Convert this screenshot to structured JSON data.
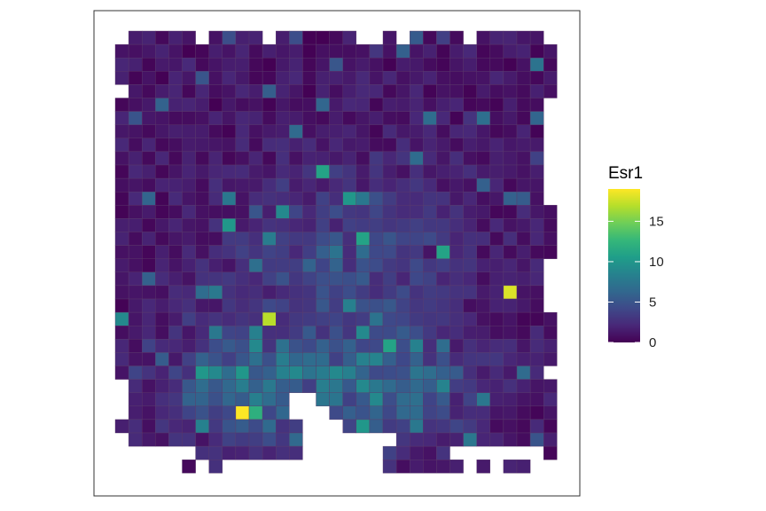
{
  "chart_data": {
    "type": "heatmap",
    "title": "",
    "xlabel": "",
    "ylabel": "",
    "legend": {
      "title": "Esr1",
      "placement": "right",
      "ticks": [
        {
          "value": 0,
          "label": "0"
        },
        {
          "value": 5,
          "label": "5"
        },
        {
          "value": 10,
          "label": "10"
        },
        {
          "value": 15,
          "label": "15"
        }
      ],
      "range": [
        0,
        19
      ]
    },
    "colorscale": "viridis",
    "colors": [
      "#440154",
      "#482878",
      "#3e4989",
      "#31688e",
      "#26828e",
      "#1f9e89",
      "#35b779",
      "#6ece58",
      "#b5de2b",
      "#fde725"
    ],
    "grid": "off",
    "axes": "hidden",
    "panel_border": true,
    "n_columns": 33,
    "n_rows": 33,
    "hotspots": [
      {
        "col": 9,
        "row": 28,
        "value": 19
      },
      {
        "col": 29,
        "row": 19,
        "value": 18
      },
      {
        "col": 11,
        "row": 21,
        "value": 17
      },
      {
        "col": 10,
        "row": 28,
        "value": 12
      },
      {
        "col": 15,
        "row": 10,
        "value": 11
      },
      {
        "col": 8,
        "row": 14,
        "value": 10
      },
      {
        "col": 0,
        "row": 21,
        "value": 9
      },
      {
        "col": 17,
        "row": 12,
        "value": 10
      },
      {
        "col": 18,
        "row": 15,
        "value": 11
      },
      {
        "col": 24,
        "row": 16,
        "value": 11
      },
      {
        "col": 20,
        "row": 23,
        "value": 11
      },
      {
        "col": 6,
        "row": 25,
        "value": 10
      },
      {
        "col": 9,
        "row": 25,
        "value": 10
      },
      {
        "col": 18,
        "row": 29,
        "value": 10
      }
    ],
    "missing_cells": [
      [
        0,
        0
      ],
      [
        6,
        0
      ],
      [
        11,
        0
      ],
      [
        18,
        0
      ],
      [
        19,
        0
      ],
      [
        21,
        0
      ],
      [
        26,
        0
      ],
      [
        32,
        0
      ],
      [
        0,
        4
      ],
      [
        32,
        5
      ],
      [
        32,
        6
      ],
      [
        32,
        7
      ],
      [
        32,
        8
      ],
      [
        32,
        9
      ],
      [
        32,
        10
      ],
      [
        32,
        11
      ],
      [
        32,
        12
      ],
      [
        32,
        17
      ],
      [
        32,
        18
      ],
      [
        32,
        19
      ],
      [
        32,
        20
      ],
      [
        32,
        25
      ],
      [
        0,
        26
      ],
      [
        0,
        27
      ],
      [
        0,
        28
      ],
      [
        13,
        27
      ],
      [
        14,
        27
      ],
      [
        13,
        28
      ],
      [
        14,
        28
      ],
      [
        15,
        28
      ],
      [
        14,
        29
      ],
      [
        15,
        29
      ],
      [
        16,
        29
      ],
      [
        0,
        30
      ],
      [
        0,
        31
      ],
      [
        1,
        31
      ],
      [
        2,
        31
      ],
      [
        3,
        31
      ],
      [
        4,
        31
      ],
      [
        5,
        31
      ],
      [
        14,
        30
      ],
      [
        15,
        30
      ],
      [
        16,
        30
      ],
      [
        17,
        30
      ],
      [
        18,
        30
      ],
      [
        19,
        30
      ],
      [
        20,
        30
      ],
      [
        14,
        31
      ],
      [
        15,
        31
      ],
      [
        16,
        31
      ],
      [
        17,
        31
      ],
      [
        18,
        31
      ],
      [
        19,
        31
      ],
      [
        25,
        31
      ],
      [
        26,
        31
      ],
      [
        27,
        31
      ],
      [
        28,
        31
      ],
      [
        29,
        31
      ],
      [
        30,
        31
      ],
      [
        31,
        31
      ],
      [
        0,
        32
      ],
      [
        1,
        32
      ],
      [
        2,
        32
      ],
      [
        3,
        32
      ],
      [
        4,
        32
      ],
      [
        6,
        32
      ],
      [
        8,
        32
      ],
      [
        9,
        32
      ],
      [
        10,
        32
      ],
      [
        11,
        32
      ],
      [
        12,
        32
      ],
      [
        13,
        32
      ],
      [
        14,
        32
      ],
      [
        15,
        32
      ],
      [
        16,
        32
      ],
      [
        17,
        32
      ],
      [
        18,
        32
      ],
      [
        19,
        32
      ],
      [
        26,
        32
      ],
      [
        28,
        32
      ],
      [
        31,
        32
      ],
      [
        32,
        32
      ]
    ]
  }
}
